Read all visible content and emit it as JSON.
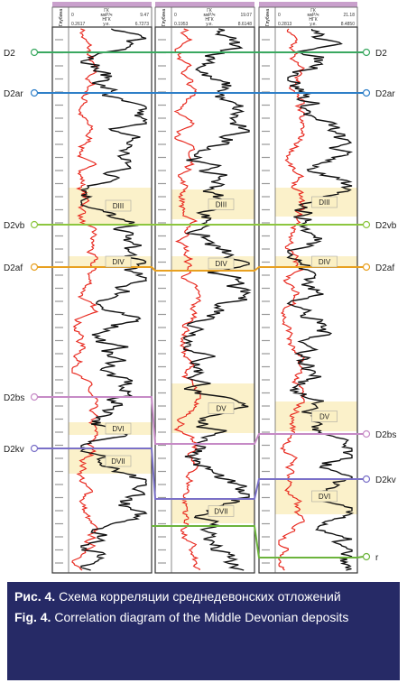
{
  "figure": {
    "columns": [
      {
        "header": {
          "depth": "Глубина",
          "gk": "ГК",
          "gk_min": "0",
          "gk_unit": "мкР/ч",
          "gk_max": "9.47",
          "ngk": "НГК",
          "ngk_min": "0.2617",
          "ngk_unit": "у.е.",
          "ngk_max": "6.7273"
        },
        "zones": [
          "DIII",
          "DIV",
          "DVI",
          "DVII"
        ]
      },
      {
        "header": {
          "depth": "Глубина",
          "gk": "ГК",
          "gk_min": "0",
          "gk_unit": "мкР/ч",
          "gk_max": "19.07",
          "ngk": "НГК",
          "ngk_min": "0.1953",
          "ngk_unit": "у.е.",
          "ngk_max": "8.6148"
        },
        "zones": [
          "DIII",
          "DIV",
          "DV",
          "DVII"
        ]
      },
      {
        "header": {
          "depth": "Глубина",
          "gk": "ГК",
          "gk_min": "0",
          "gk_unit": "мкР/ч",
          "gk_max": "21.18",
          "ngk": "НГК",
          "ngk_min": "0.2813",
          "ngk_unit": "у.е.",
          "ngk_max": "8.4850"
        },
        "zones": [
          "DIII",
          "DIV",
          "DV",
          "DVI"
        ]
      }
    ],
    "horizons": [
      {
        "label": "D2"
      },
      {
        "label": "D2ar"
      },
      {
        "label": "D2vb"
      },
      {
        "label": "D2af"
      },
      {
        "label": "D2bs"
      },
      {
        "label": "D2kv"
      },
      {
        "label": "r"
      }
    ]
  },
  "caption": {
    "ru_label": "Рис. 4.",
    "ru_text": "Схема корреляции среднедевонских отложений",
    "en_label": "Fig. 4.",
    "en_text": "Correlation diagram of the Middle Devonian deposits"
  }
}
